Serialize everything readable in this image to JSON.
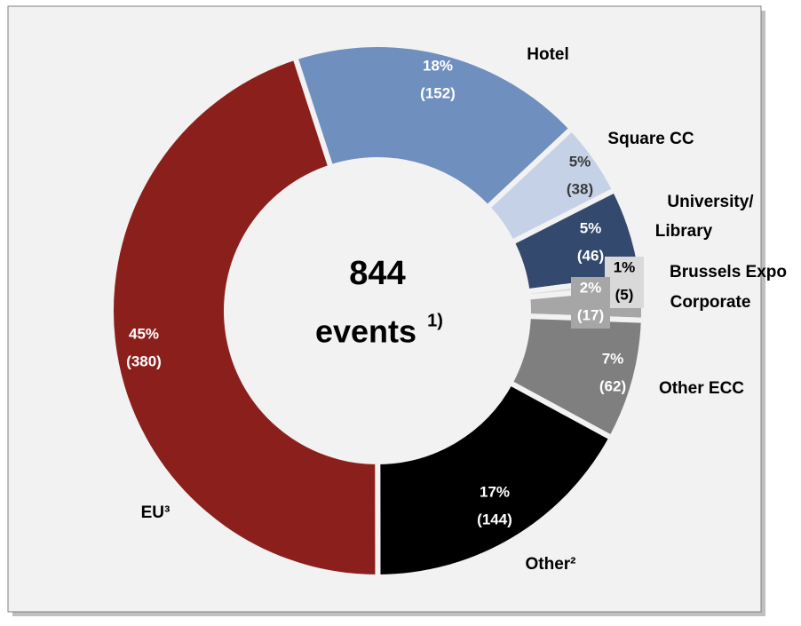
{
  "chart_data": {
    "type": "donut",
    "categories": [
      "Hotel",
      "Square CC",
      "University/\nLibrary",
      "Brussels Expo",
      "Corporate",
      "Other ECC",
      "Other²",
      "EU³"
    ],
    "values": [
      152,
      38,
      46,
      5,
      17,
      62,
      144,
      380
    ],
    "percent_labels": [
      "18%",
      "5%",
      "5%",
      "1%",
      "2%",
      "7%",
      "17%",
      "45%"
    ],
    "value_labels": [
      "(152)",
      "(38)",
      "(46)",
      "(5)",
      "(17)",
      "(62)",
      "(144)",
      "(380)"
    ],
    "colors": [
      "#6f8fbe",
      "#c5d1e6",
      "#34496e",
      "#d9d9d9",
      "#a6a6a6",
      "#7f7f7f",
      "#000000",
      "#8b1f1c"
    ],
    "center": {
      "total": "844",
      "label": "events",
      "note": "1)"
    }
  }
}
